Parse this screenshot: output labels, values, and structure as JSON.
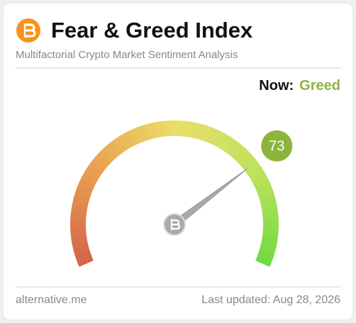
{
  "header": {
    "title": "Fear & Greed Index",
    "subtitle": "Multifactorial Crypto Market Sentiment Analysis"
  },
  "now": {
    "label": "Now:",
    "classification": "Greed"
  },
  "gauge": {
    "type": "gauge",
    "value": 73,
    "range": [
      0,
      100
    ],
    "color": "#8cb53d"
  },
  "footer": {
    "source": "alternative.me",
    "updated": "Last updated: Aug 28, 2026"
  }
}
